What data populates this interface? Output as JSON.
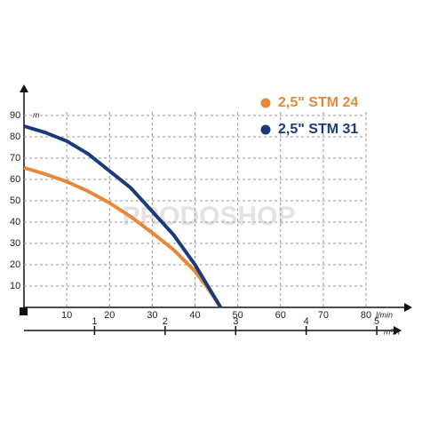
{
  "chart_data": {
    "type": "line",
    "watermark": "PRODOSHOP",
    "x_unit": "l/min",
    "y_unit": "m",
    "x2_unit": "m³/h",
    "x": [
      0,
      5,
      10,
      15,
      20,
      25,
      30,
      35,
      40,
      43,
      46
    ],
    "series": [
      {
        "name": "2,5\" STM 24",
        "color": "#e8883a",
        "values": [
          65.5,
          62.5,
          59,
          54.5,
          49,
          42.5,
          35,
          27,
          17,
          9,
          0
        ]
      },
      {
        "name": "2,5\" STM 31",
        "color": "#1b3a7a",
        "values": [
          85,
          82,
          78,
          72,
          64,
          56,
          45,
          34,
          20,
          10,
          0
        ]
      }
    ],
    "xlim": [
      0,
      80
    ],
    "xticks": [
      10,
      20,
      30,
      40,
      50,
      60,
      70,
      80
    ],
    "ylim": [
      0,
      90
    ],
    "yticks": [
      10,
      20,
      30,
      40,
      50,
      60,
      70,
      80,
      90
    ],
    "x2lim": [
      0,
      5.2
    ],
    "x2ticks": [
      1,
      2,
      3,
      4,
      5
    ],
    "grid": true
  }
}
